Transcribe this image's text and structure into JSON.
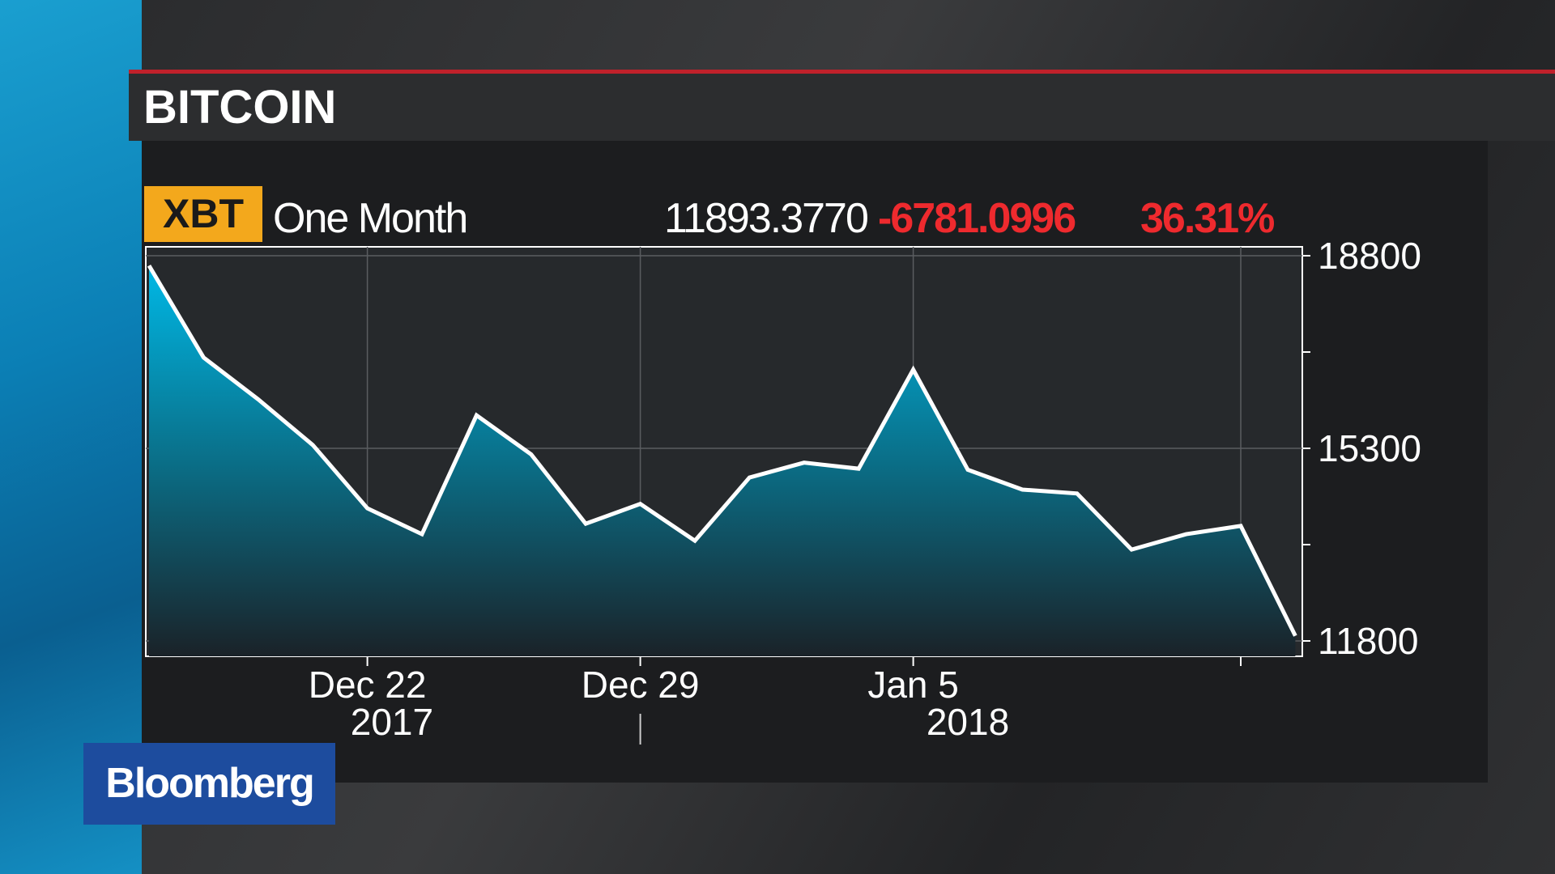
{
  "title": "BITCOIN",
  "header": {
    "ticker": "XBT",
    "period": "One Month",
    "last": "11893.3770",
    "change": "-6781.0996",
    "pct": "36.31%"
  },
  "brand": "Bloomberg",
  "colors": {
    "accent_red": "#ee2a2e",
    "badge": "#f3a81c",
    "fill": "#00b4e0",
    "line": "#ffffff"
  },
  "chart_data": {
    "type": "area",
    "x": [
      "2017-12-18",
      "2017-12-19",
      "2017-12-20",
      "2017-12-21",
      "2017-12-22",
      "2017-12-25",
      "2017-12-26",
      "2017-12-27",
      "2017-12-28",
      "2017-12-29",
      "2018-01-01",
      "2018-01-02",
      "2018-01-03",
      "2018-01-04",
      "2018-01-05",
      "2018-01-08",
      "2018-01-09",
      "2018-01-10",
      "2018-01-11",
      "2018-01-12",
      "2018-01-15",
      "2018-01-16"
    ],
    "values": [
      18620,
      16950,
      16190,
      15360,
      14210,
      13740,
      15900,
      15190,
      13930,
      14290,
      13620,
      14770,
      15040,
      14930,
      16730,
      14910,
      14550,
      14480,
      13460,
      13740,
      13890,
      11893
    ],
    "ylim": [
      11600,
      19000
    ],
    "yticks": [
      {
        "v": 18800,
        "label": "18800"
      },
      {
        "v": 17050,
        "label": ""
      },
      {
        "v": 15300,
        "label": "15300"
      },
      {
        "v": 13550,
        "label": ""
      },
      {
        "v": 11800,
        "label": "11800"
      }
    ],
    "xticks": [
      {
        "i": 4,
        "label": "Dec 22"
      },
      {
        "i": 9,
        "label": "Dec 29"
      },
      {
        "i": 14,
        "label": "Jan 5"
      },
      {
        "i": 20,
        "label": ""
      }
    ],
    "years": [
      {
        "i": 4.45,
        "label": "2017"
      },
      {
        "i": 15,
        "label": "2018"
      }
    ],
    "grid": true
  }
}
